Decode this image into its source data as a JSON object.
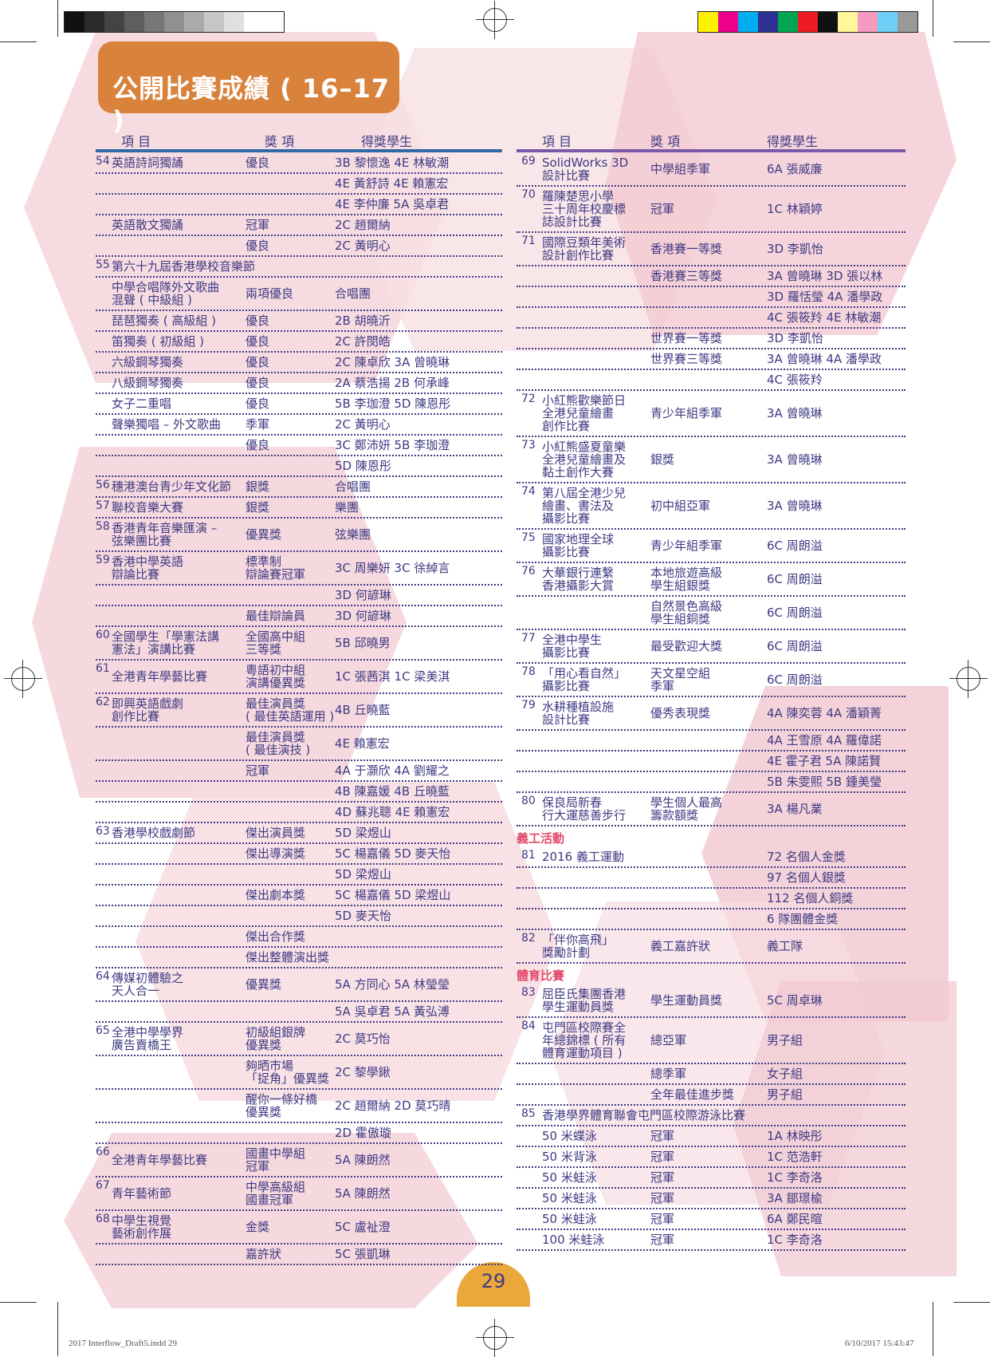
{
  "title": "公開比賽成績 ( 16–17 )",
  "page_number": "29",
  "footer": {
    "left": "2017 Interflow_Draft5.indd   29",
    "right": "6/10/2017   15:43:47"
  },
  "headers": {
    "item": "項 目",
    "award": "獎 項",
    "students": "得獎學生"
  },
  "colors": {
    "title_bg": "#d9823c",
    "header_line_left": "#2f6aa6",
    "header_line_right": "#7a5aa8",
    "text": "#3f3a83",
    "section": "#e04a6a",
    "page_tab": "#eaa73a"
  },
  "left_rows": [
    {
      "n": "54",
      "item": "英語詩詞獨誦",
      "award": "優良",
      "students": "3B 黎懷逸 4E 林敏潮",
      "h": 26
    },
    {
      "n": "",
      "item": "",
      "award": "",
      "students": "4E 黃舒詩 4E 賴憲宏",
      "h": 26
    },
    {
      "n": "",
      "item": "",
      "award": "",
      "students": "4E 李仲廉 5A 吳卓君",
      "h": 26
    },
    {
      "n": "",
      "item": "英語散文獨誦",
      "award": "冠軍",
      "students": "2C 趙爾納",
      "h": 26
    },
    {
      "n": "",
      "item": "",
      "award": "優良",
      "students": "2C 黃明心",
      "h": 26
    },
    {
      "n": "55",
      "item": "第六十九屆香港學校音樂節",
      "award": "",
      "students": "",
      "h": 26
    },
    {
      "n": "",
      "item": "中學合唱隊外文歌曲\n混聲 ( 中級組 )",
      "award": "兩項優良",
      "students": "合唱團",
      "h": 42
    },
    {
      "n": "",
      "item": "琵琶獨奏 ( 高級組 )",
      "award": "優良",
      "students": "2B 胡曉沂",
      "h": 26
    },
    {
      "n": "",
      "item": "笛獨奏 ( 初級組 )",
      "award": "優良",
      "students": "2C 許閔皓",
      "h": 26
    },
    {
      "n": "",
      "item": "六級鋼琴獨奏",
      "award": "優良",
      "students": "2C 陳卓欣 3A 曾曉琳",
      "h": 26
    },
    {
      "n": "",
      "item": "八級鋼琴獨奏",
      "award": "優良",
      "students": "2A 蔡浩揚 2B 何承峰",
      "h": 26
    },
    {
      "n": "",
      "item": "女子二重唱",
      "award": "優良",
      "students": "5B 李珈澄 5D 陳恩彤",
      "h": 26
    },
    {
      "n": "",
      "item": "聲樂獨唱 – 外文歌曲",
      "award": "季軍",
      "students": "2C 黃明心",
      "h": 26
    },
    {
      "n": "",
      "item": "",
      "award": "優良",
      "students": "3C 鄭沛妍 5B 李珈澄",
      "h": 26
    },
    {
      "n": "",
      "item": "",
      "award": "",
      "students": "5D 陳恩彤",
      "h": 26
    },
    {
      "n": "56",
      "item": "穗港澳台青少年文化節",
      "award": "銀獎",
      "students": "合唱團",
      "h": 26
    },
    {
      "n": "57",
      "item": "聯校音樂大賽",
      "award": "銀獎",
      "students": "樂團",
      "h": 26
    },
    {
      "n": "58",
      "item": "香港青年音樂匯演 –\n弦樂團比賽",
      "award": "優異獎",
      "students": "弦樂團",
      "h": 42
    },
    {
      "n": "59",
      "item": "香港中學英語\n辯論比賽",
      "award": "標準制\n辯論賽冠軍",
      "students": "3C 周樂妍 3C 徐綽言",
      "h": 42
    },
    {
      "n": "",
      "item": "",
      "award": "",
      "students": "3D 何諺琳",
      "h": 26
    },
    {
      "n": "",
      "item": "",
      "award": "最佳辯論員",
      "students": "3D 何諺琳",
      "h": 26
    },
    {
      "n": "60",
      "item": "全國學生「學憲法講\n憲法」演講比賽",
      "award": "全國高中組\n三等獎",
      "students": "5B 邱曉男",
      "h": 42
    },
    {
      "n": "61",
      "item": "全港青年學藝比賽",
      "award": "粵語初中組\n演講優異獎",
      "students": "1C 張茜淇 1C 梁美淇",
      "h": 42
    },
    {
      "n": "62",
      "item": "即興英語戲劇\n創作比賽",
      "award": "最佳演員獎\n( 最佳英語運用 )",
      "students": "4B 丘曉藍",
      "h": 42
    },
    {
      "n": "",
      "item": "",
      "award": "最佳演員獎\n( 最佳演技 )",
      "students": "4E 賴憲宏",
      "h": 42
    },
    {
      "n": "",
      "item": "",
      "award": "冠軍",
      "students": "4A 于灝欣 4A 劉耀之",
      "h": 26
    },
    {
      "n": "",
      "item": "",
      "award": "",
      "students": "4B 陳嘉媛 4B 丘曉藍",
      "h": 26
    },
    {
      "n": "",
      "item": "",
      "award": "",
      "students": "4D 蘇兆聰 4E 賴憲宏",
      "h": 26
    },
    {
      "n": "63",
      "item": "香港學校戲劇節",
      "award": "傑出演員獎",
      "students": "5D 梁煜山",
      "h": 26
    },
    {
      "n": "",
      "item": "",
      "award": "傑出導演獎",
      "students": "5C 楊嘉儀 5D 麥天怡",
      "h": 26
    },
    {
      "n": "",
      "item": "",
      "award": "",
      "students": "5D 梁煜山",
      "h": 26
    },
    {
      "n": "",
      "item": "",
      "award": "傑出劇本獎",
      "students": "5C 楊嘉儀 5D 梁煜山",
      "h": 26
    },
    {
      "n": "",
      "item": "",
      "award": "",
      "students": "5D 麥天怡",
      "h": 26
    },
    {
      "n": "",
      "item": "",
      "award": "傑出合作獎",
      "students": "",
      "h": 26
    },
    {
      "n": "",
      "item": "",
      "award": "傑出整體演出獎",
      "students": "",
      "h": 26
    },
    {
      "n": "64",
      "item": "傳媒初體驗之\n天人合一",
      "award": "優異獎",
      "students": "5A 方同心 5A 林瑩瑩",
      "h": 42
    },
    {
      "n": "",
      "item": "",
      "award": "",
      "students": "5A 吳卓君 5A 黃弘溥",
      "h": 26
    },
    {
      "n": "65",
      "item": "全港中學學界\n廣告賣橋王",
      "award": "初級組銀牌\n優異獎",
      "students": "2C 莫巧怡",
      "h": 42
    },
    {
      "n": "",
      "item": "",
      "award": "夠晒市場\n「捉角」優異獎",
      "students": "2C 黎學鍬",
      "h": 42
    },
    {
      "n": "",
      "item": "",
      "award": "醒你一條好橋\n優異獎",
      "students": "2C 趙爾納 2D 莫巧晴",
      "h": 42
    },
    {
      "n": "",
      "item": "",
      "award": "",
      "students": "2D 霍傲璇",
      "h": 26
    },
    {
      "n": "66",
      "item": "全港青年學藝比賽",
      "award": "國畫中學組\n冠軍",
      "students": "5A 陳朗然",
      "h": 42
    },
    {
      "n": "67",
      "item": "青年藝術節",
      "award": "中學高級組\n國畫冠軍",
      "students": "5A 陳朗然",
      "h": 42
    },
    {
      "n": "68",
      "item": "中學生視覺\n藝術創作展",
      "award": "金獎",
      "students": "5C 盧祉澄",
      "h": 42
    },
    {
      "n": "",
      "item": "",
      "award": "嘉許狀",
      "students": "5C 張凱琳",
      "h": 26
    }
  ],
  "right_rows": [
    {
      "n": "69",
      "item": "SolidWorks 3D\n設計比賽",
      "award": "中學組季軍",
      "students": "6A 張威廉",
      "h": 42
    },
    {
      "n": "70",
      "item": "羅陳楚思小學\n三十周年校慶標\n誌設計比賽",
      "award": "冠軍",
      "students": "1C 林穎婷",
      "h": 58
    },
    {
      "n": "71",
      "item": "國際豆類年美術\n設計創作比賽",
      "award": "香港賽一等獎",
      "students": "3D 李凱怡",
      "h": 42
    },
    {
      "n": "",
      "item": "",
      "award": "香港賽三等獎",
      "students": "3A 曾曉琳 3D 張以林",
      "h": 26
    },
    {
      "n": "",
      "item": "",
      "award": "",
      "students": "3D 羅恬瑩 4A 潘學政",
      "h": 26
    },
    {
      "n": "",
      "item": "",
      "award": "",
      "students": "4C 張筱羚 4E 林敏潮",
      "h": 26
    },
    {
      "n": "",
      "item": "",
      "award": "世界賽一等獎",
      "students": "3D 李凱怡",
      "h": 26
    },
    {
      "n": "",
      "item": "",
      "award": "世界賽三等獎",
      "students": "3A 曾曉琳 4A 潘學政",
      "h": 26
    },
    {
      "n": "",
      "item": "",
      "award": "",
      "students": "4C 張筱羚",
      "h": 26
    },
    {
      "n": "72",
      "item": "小紅熊歡樂節日\n全港兒童繪畫\n創作比賽",
      "award": "青少年組季軍",
      "students": "3A 曾曉琳",
      "h": 58
    },
    {
      "n": "73",
      "item": "小紅熊盛夏童樂\n全港兒童繪畫及\n黏土創作大賽",
      "award": "銀獎",
      "students": "3A 曾曉琳",
      "h": 58
    },
    {
      "n": "74",
      "item": "第八屆全港少兒\n繪畫、書法及\n攝影比賽",
      "award": "初中組亞軍",
      "students": "3A 曾曉琳",
      "h": 58
    },
    {
      "n": "75",
      "item": "國家地理全球\n攝影比賽",
      "award": "青少年組季軍",
      "students": "6C 周朗溢",
      "h": 42
    },
    {
      "n": "76",
      "item": "大華銀行連繫\n香港攝影大賞",
      "award": "本地旅遊高級\n學生組銀獎",
      "students": "6C 周朗溢",
      "h": 42
    },
    {
      "n": "",
      "item": "",
      "award": "自然景色高級\n學生組銅獎",
      "students": "6C 周朗溢",
      "h": 42
    },
    {
      "n": "77",
      "item": "全港中學生\n攝影比賽",
      "award": "最受歡迎大獎",
      "students": "6C 周朗溢",
      "h": 42
    },
    {
      "n": "78",
      "item": "「用心看自然」\n攝影比賽",
      "award": "天文星空組\n季軍",
      "students": "6C 周朗溢",
      "h": 42
    },
    {
      "n": "79",
      "item": "水耕種植設施\n設計比賽",
      "award": "優秀表現獎",
      "students": "4A 陳奕蓉 4A 潘穎菁",
      "h": 42
    },
    {
      "n": "",
      "item": "",
      "award": "",
      "students": "4A 王雪原 4A 羅偉諾",
      "h": 26
    },
    {
      "n": "",
      "item": "",
      "award": "",
      "students": "4E 霍子君 5A 陳諾賢",
      "h": 26
    },
    {
      "n": "",
      "item": "",
      "award": "",
      "students": "5B 朱雯熙 5B 鍾美瑩",
      "h": 26
    },
    {
      "n": "80",
      "item": "保良局新春\n行大運慈善步行",
      "award": "學生個人最高\n籌款額獎",
      "students": "3A 楊凡業",
      "h": 42
    },
    {
      "section": "義工活動",
      "h": 26
    },
    {
      "n": "81",
      "item": "2016 義工運動",
      "award": "",
      "students": "72 名個人金獎",
      "h": 26
    },
    {
      "n": "",
      "item": "",
      "award": "",
      "students": "97 名個人銀獎",
      "h": 26
    },
    {
      "n": "",
      "item": "",
      "award": "",
      "students": "112 名個人銅獎",
      "h": 26
    },
    {
      "n": "",
      "item": "",
      "award": "",
      "students": "6 隊團體金獎",
      "h": 26
    },
    {
      "n": "82",
      "item": "「伴你高飛」\n獎勵計劃",
      "award": "義工嘉許狀",
      "students": "義工隊",
      "h": 42
    },
    {
      "section": "體育比賽",
      "h": 26
    },
    {
      "n": "83",
      "item": "屈臣氏集團香港\n學生運動員獎",
      "award": "學生運動員獎",
      "students": "5C 周卓琳",
      "h": 42
    },
    {
      "n": "84",
      "item": "屯門區校際賽全\n年總錦標 ( 所有\n體育運動項目 )",
      "award": "總亞軍",
      "students": "男子組",
      "h": 58
    },
    {
      "n": "",
      "item": "",
      "award": "總季軍",
      "students": "女子組",
      "h": 26
    },
    {
      "n": "",
      "item": "",
      "award": "全年最佳進步獎",
      "students": "男子組",
      "h": 26
    },
    {
      "n": "85",
      "item": "香港學界體育聯會屯門區校際游泳比賽",
      "award": "",
      "students": "",
      "h": 26
    },
    {
      "n": "",
      "item": "50 米蝶泳",
      "award": "冠軍",
      "students": "1A 林映彤",
      "h": 26
    },
    {
      "n": "",
      "item": "50 米背泳",
      "award": "冠軍",
      "students": "1C 范浩軒",
      "h": 26
    },
    {
      "n": "",
      "item": "50 米蛙泳",
      "award": "冠軍",
      "students": "1C 李奇洛",
      "h": 26
    },
    {
      "n": "",
      "item": "50 米蛙泳",
      "award": "冠軍",
      "students": "3A 鄒璟楡",
      "h": 26
    },
    {
      "n": "",
      "item": "50 米蛙泳",
      "award": "冠軍",
      "students": "6A 鄭民暄",
      "h": 26
    },
    {
      "n": "",
      "item": "100 米蛙泳",
      "award": "冠軍",
      "students": "1C 李奇洛",
      "h": 26
    }
  ]
}
